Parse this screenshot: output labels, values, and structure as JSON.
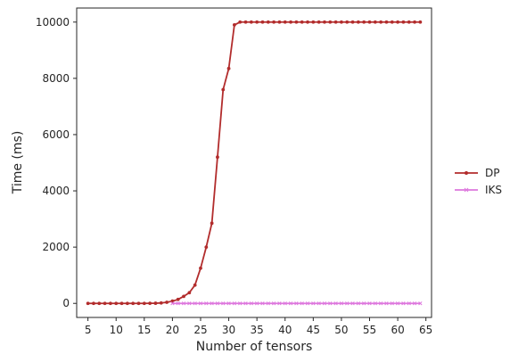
{
  "chart_data": {
    "type": "line",
    "title": "",
    "xlabel": "Number of tensors",
    "ylabel": "Time (ms)",
    "xlim": [
      3,
      66
    ],
    "ylim": [
      -500,
      10500
    ],
    "xticks": [
      5,
      10,
      15,
      20,
      25,
      30,
      35,
      40,
      45,
      50,
      55,
      60,
      65
    ],
    "yticks": [
      0,
      2000,
      4000,
      6000,
      8000,
      10000
    ],
    "grid": false,
    "legend_position": "right-outside",
    "series": [
      {
        "name": "DP",
        "color": "#b22c2c",
        "marker": "point",
        "x": [
          5,
          6,
          7,
          8,
          9,
          10,
          11,
          12,
          13,
          14,
          15,
          16,
          17,
          18,
          19,
          20,
          21,
          22,
          23,
          24,
          25,
          26,
          27,
          28,
          29,
          30,
          31,
          32,
          33,
          34,
          35,
          36,
          37,
          38,
          39,
          40,
          41,
          42,
          43,
          44,
          45,
          46,
          47,
          48,
          49,
          50,
          51,
          52,
          53,
          54,
          55,
          56,
          57,
          58,
          59,
          60,
          61,
          62,
          63,
          64
        ],
        "y": [
          0,
          0,
          0,
          0,
          0,
          0,
          0,
          0,
          0,
          0,
          0,
          2,
          5,
          15,
          40,
          80,
          140,
          250,
          380,
          650,
          1250,
          2000,
          2850,
          5200,
          7600,
          8350,
          9900,
          10000,
          10000,
          10000,
          10000,
          10000,
          10000,
          10000,
          10000,
          10000,
          10000,
          10000,
          10000,
          10000,
          10000,
          10000,
          10000,
          10000,
          10000,
          10000,
          10000,
          10000,
          10000,
          10000,
          10000,
          10000,
          10000,
          10000,
          10000,
          10000,
          10000,
          10000,
          10000,
          10000
        ]
      },
      {
        "name": "IKS",
        "color": "#dd77dd",
        "marker": "x",
        "x": [
          20,
          21,
          22,
          23,
          24,
          25,
          26,
          27,
          28,
          29,
          30,
          31,
          32,
          33,
          34,
          35,
          36,
          37,
          38,
          39,
          40,
          41,
          42,
          43,
          44,
          45,
          46,
          47,
          48,
          49,
          50,
          51,
          52,
          53,
          54,
          55,
          56,
          57,
          58,
          59,
          60,
          61,
          62,
          63,
          64
        ],
        "y": [
          0,
          0,
          0,
          0,
          0,
          0,
          0,
          0,
          0,
          0,
          0,
          0,
          0,
          0,
          0,
          0,
          0,
          0,
          0,
          0,
          0,
          0,
          0,
          0,
          0,
          0,
          0,
          0,
          0,
          0,
          0,
          0,
          0,
          0,
          0,
          0,
          0,
          0,
          0,
          0,
          0,
          0,
          0,
          0,
          0
        ]
      }
    ]
  }
}
